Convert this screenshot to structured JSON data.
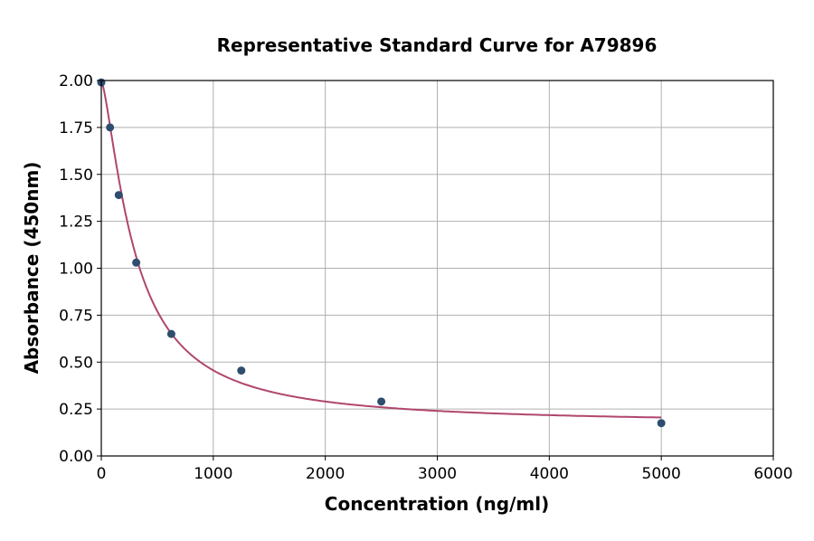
{
  "chart_data": {
    "type": "scatter",
    "title": "Representative Standard Curve for A79896",
    "xlabel": "Concentration (ng/ml)",
    "ylabel": "Absorbance (450nm)",
    "xlim": [
      0,
      6000
    ],
    "ylim": [
      0,
      2.0
    ],
    "xticks": [
      "0",
      "1000",
      "2000",
      "3000",
      "4000",
      "5000",
      "6000"
    ],
    "yticks": [
      "0.00",
      "0.25",
      "0.50",
      "0.75",
      "1.00",
      "1.25",
      "1.50",
      "1.75",
      "2.00"
    ],
    "grid": true,
    "points": [
      {
        "x": 0,
        "y": 1.99
      },
      {
        "x": 78,
        "y": 1.75
      },
      {
        "x": 156,
        "y": 1.39
      },
      {
        "x": 312,
        "y": 1.03
      },
      {
        "x": 625,
        "y": 0.65
      },
      {
        "x": 1250,
        "y": 0.455
      },
      {
        "x": 2500,
        "y": 0.29
      },
      {
        "x": 5000,
        "y": 0.175
      }
    ],
    "fit_curve": {
      "x_range": [
        0,
        5000
      ]
    },
    "colors": {
      "points": "#2e4d6f",
      "curve": "#b0466e",
      "grid": "#b0b0b0"
    }
  }
}
